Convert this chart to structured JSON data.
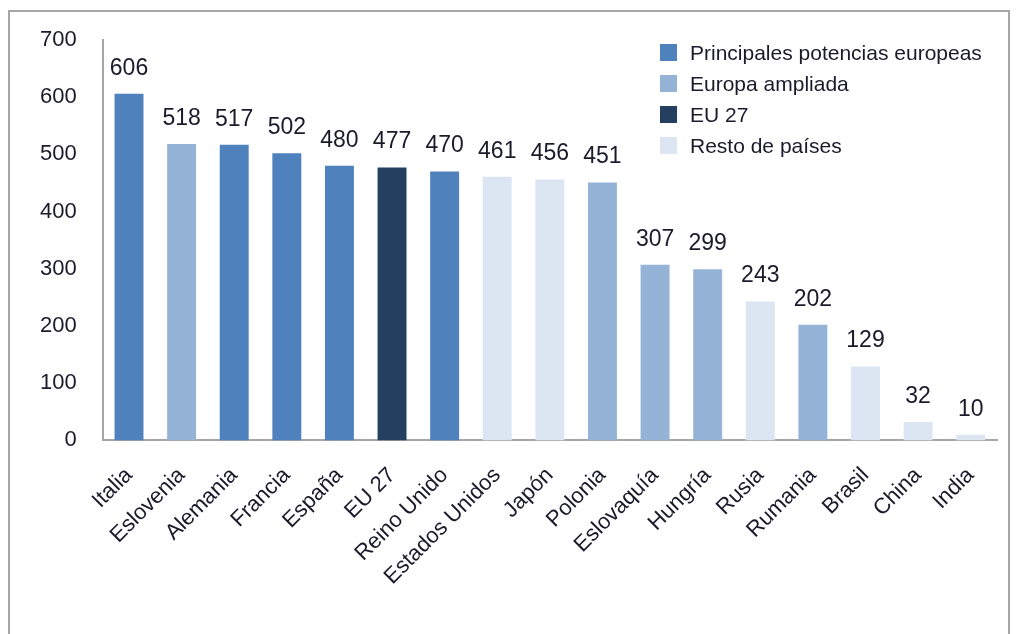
{
  "chart_data": {
    "type": "bar",
    "categories": [
      "Italia",
      "Eslovenia",
      "Alemania",
      "Francia",
      "España",
      "EU 27",
      "Reino Unido",
      "Estados Unidos",
      "Japón",
      "Polonia",
      "Eslovaquía",
      "Hungría",
      "Rusia",
      "Rumania",
      "Brasil",
      "China",
      "India"
    ],
    "series": [
      {
        "name": "Principales potencias europeas",
        "color": "#4f81bd",
        "values": [
          606,
          null,
          517,
          502,
          480,
          null,
          470,
          null,
          null,
          null,
          null,
          null,
          null,
          null,
          null,
          null,
          null
        ]
      },
      {
        "name": "Europa ampliada",
        "color": "#95b3d7",
        "values": [
          null,
          518,
          null,
          null,
          null,
          null,
          null,
          null,
          null,
          451,
          307,
          299,
          null,
          202,
          null,
          null,
          null
        ]
      },
      {
        "name": "EU 27",
        "color": "#243f60",
        "values": [
          null,
          null,
          null,
          null,
          null,
          477,
          null,
          null,
          null,
          null,
          null,
          null,
          null,
          null,
          null,
          null,
          null
        ]
      },
      {
        "name": "Resto de países",
        "color": "#dce6f2",
        "values": [
          null,
          null,
          null,
          null,
          null,
          null,
          null,
          461,
          456,
          null,
          null,
          null,
          243,
          null,
          129,
          32,
          10
        ]
      }
    ],
    "ylim": [
      0,
      700
    ],
    "yticks": [
      0,
      100,
      200,
      300,
      400,
      500,
      600,
      700
    ],
    "grid": false,
    "legend": "top right",
    "data_labels": true
  }
}
